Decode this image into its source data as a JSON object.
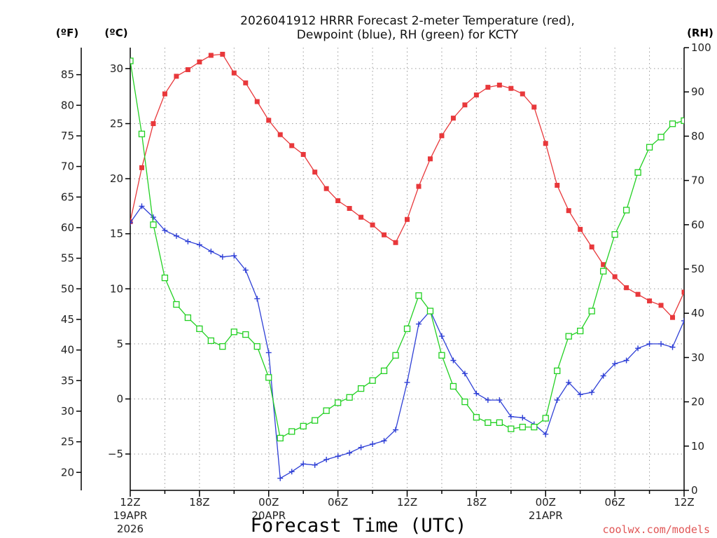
{
  "chart_data": {
    "type": "line",
    "title_line1": "2026041912 HRRR Forecast 2-meter Temperature (red),",
    "title_line2": "Dewpoint (blue), RH (green) for KCTY",
    "xlabel": "Forecast Time (UTC)",
    "credit": "coolwx.com/models",
    "unit_left_f": "(ºF)",
    "unit_left_c": "(ºC)",
    "unit_right": "(RH)",
    "x_hours_range": [
      0,
      48
    ],
    "x_ticks": [
      {
        "hour": 0,
        "label": "12Z"
      },
      {
        "hour": 6,
        "label": "18Z"
      },
      {
        "hour": 12,
        "label": "00Z"
      },
      {
        "hour": 18,
        "label": "06Z"
      },
      {
        "hour": 24,
        "label": "12Z"
      },
      {
        "hour": 30,
        "label": "18Z"
      },
      {
        "hour": 36,
        "label": "00Z"
      },
      {
        "hour": 42,
        "label": "06Z"
      },
      {
        "hour": 48,
        "label": "12Z"
      }
    ],
    "date_labels": [
      {
        "hour": 0,
        "line1": "19APR",
        "line2": "2026"
      },
      {
        "hour": 12,
        "line1": "20APR",
        "line2": ""
      },
      {
        "hour": 36,
        "line1": "21APR",
        "line2": ""
      }
    ],
    "celsius_range": [
      -8.3,
      31.9
    ],
    "celsius_ticks": [
      -5,
      0,
      5,
      10,
      15,
      20,
      25,
      30
    ],
    "celsius_tick_labels": [
      "−5",
      "0",
      "5",
      "10",
      "15",
      "20",
      "25",
      "30"
    ],
    "fahrenheit_ticks": [
      20,
      25,
      30,
      35,
      40,
      45,
      50,
      55,
      60,
      65,
      70,
      75,
      80,
      85
    ],
    "fahrenheit_tick_labels": [
      "20",
      "25",
      "30",
      "35",
      "40",
      "45",
      "50",
      "55",
      "60",
      "65",
      "70",
      "75",
      "80",
      "85"
    ],
    "rh_range": [
      0,
      100
    ],
    "rh_ticks": [
      0,
      10,
      20,
      30,
      40,
      50,
      60,
      70,
      80,
      90,
      100
    ],
    "rh_tick_labels": [
      "0",
      "10",
      "20",
      "30",
      "40",
      "50",
      "60",
      "70",
      "80",
      "90",
      "100"
    ],
    "grid": true,
    "series": [
      {
        "name": "2-meter Temperature",
        "axis": "celsius",
        "color": "#e8383b",
        "marker": "filled-square",
        "values": [
          16.1,
          21.0,
          25.0,
          27.7,
          29.3,
          29.9,
          30.6,
          31.2,
          31.3,
          29.6,
          28.7,
          27.0,
          25.3,
          24.0,
          23.0,
          22.2,
          20.6,
          19.1,
          18.0,
          17.3,
          16.5,
          15.8,
          14.9,
          14.2,
          16.3,
          19.3,
          21.8,
          23.9,
          25.5,
          26.7,
          27.6,
          28.3,
          28.5,
          28.2,
          27.7,
          26.5,
          23.2,
          19.4,
          17.1,
          15.4,
          13.8,
          12.2,
          11.1,
          10.1,
          9.5,
          8.9,
          8.5,
          7.4,
          9.7
        ]
      },
      {
        "name": "Dewpoint",
        "axis": "celsius",
        "color": "#2e3fd6",
        "marker": "plus",
        "values": [
          16.0,
          17.5,
          16.5,
          15.3,
          14.8,
          14.3,
          14.0,
          13.4,
          12.9,
          13.0,
          11.7,
          9.1,
          4.2,
          -7.2,
          -6.6,
          -5.9,
          -6.0,
          -5.5,
          -5.2,
          -4.9,
          -4.4,
          -4.1,
          -3.8,
          -2.8,
          1.5,
          6.8,
          8.0,
          5.7,
          3.5,
          2.3,
          0.5,
          -0.1,
          -0.1,
          -1.6,
          -1.7,
          -2.3,
          -3.2,
          -0.1,
          1.5,
          0.4,
          0.6,
          2.1,
          3.2,
          3.5,
          4.6,
          5.0,
          5.0,
          4.7,
          7.1
        ]
      },
      {
        "name": "RH",
        "axis": "rh",
        "color": "#22d022",
        "marker": "open-square",
        "values": [
          97.0,
          80.5,
          60.0,
          48.0,
          42.0,
          39.0,
          36.5,
          33.8,
          32.5,
          35.8,
          35.2,
          32.5,
          25.5,
          11.8,
          13.3,
          14.5,
          15.8,
          18.0,
          19.8,
          21.0,
          23.0,
          24.8,
          27.0,
          30.5,
          36.5,
          44.0,
          40.5,
          30.5,
          23.5,
          20.0,
          16.5,
          15.3,
          15.3,
          13.9,
          14.3,
          14.3,
          16.3,
          27.0,
          34.8,
          36.0,
          40.5,
          49.5,
          57.8,
          63.3,
          71.8,
          77.5,
          79.8,
          82.8,
          83.5
        ]
      }
    ]
  }
}
